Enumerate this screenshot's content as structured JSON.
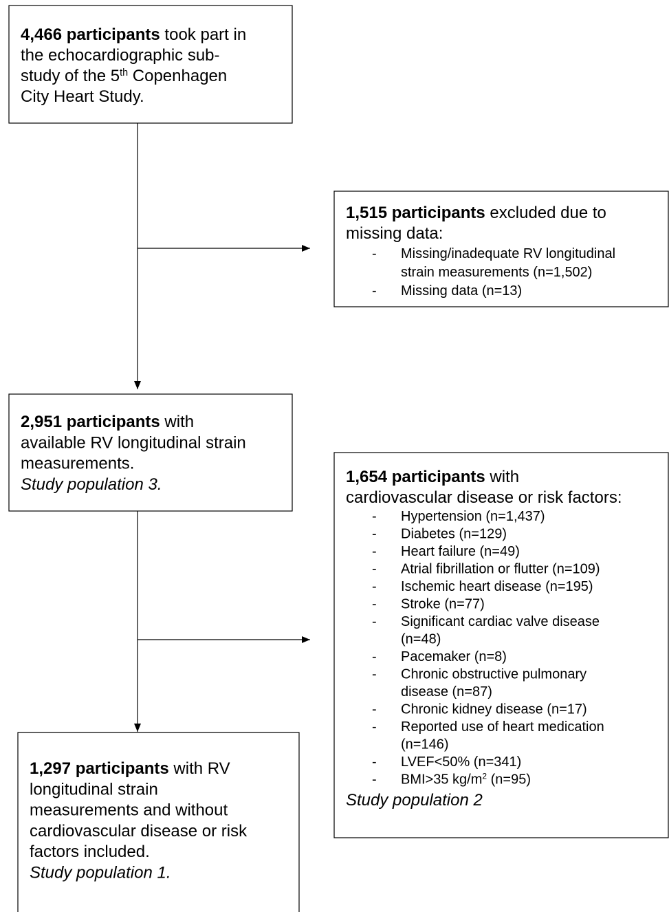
{
  "bullet": "-",
  "nodes": [
    {
      "head": [
        [
          {
            "text": "4,466 participants",
            "style": "bold"
          },
          " took part in"
        ],
        [
          "the echocardiographic sub-"
        ],
        [
          "study of the 5",
          {
            "text": "th",
            "style": "sup"
          },
          " Copenhagen"
        ],
        [
          "City Heart Study."
        ]
      ]
    },
    {
      "head": [
        [
          {
            "text": "1,515 participants",
            "style": "bold"
          },
          " excluded due to"
        ],
        [
          "missing data:"
        ]
      ],
      "items": [
        [
          [
            "Missing/inadequate RV longitudinal"
          ],
          [
            "strain measurements (n=1,502)"
          ]
        ],
        [
          [
            "Missing data (n=13)"
          ]
        ]
      ]
    },
    {
      "head": [
        [
          {
            "text": "2,951 participants",
            "style": "bold"
          },
          " with"
        ],
        [
          "available RV longitudinal strain"
        ],
        [
          "measurements."
        ],
        [
          {
            "text": "Study population 3.",
            "style": "italic"
          }
        ]
      ]
    },
    {
      "head": [
        [
          {
            "text": "1,654 participants",
            "style": "bold"
          },
          " with"
        ],
        [
          "cardiovascular disease or risk factors:"
        ]
      ],
      "items": [
        [
          [
            "Hypertension (n=1,437)"
          ]
        ],
        [
          [
            "Diabetes (n=129)"
          ]
        ],
        [
          [
            "Heart failure (n=49)"
          ]
        ],
        [
          [
            "Atrial fibrillation or flutter (n=109)"
          ]
        ],
        [
          [
            "Ischemic heart disease (n=195)"
          ]
        ],
        [
          [
            "Stroke (n=77)"
          ]
        ],
        [
          [
            "Significant cardiac valve disease"
          ],
          [
            "(n=48)"
          ]
        ],
        [
          [
            "Pacemaker (n=8)"
          ]
        ],
        [
          [
            "Chronic obstructive pulmonary"
          ],
          [
            "disease (n=87)"
          ]
        ],
        [
          [
            "Chronic kidney disease (n=17)"
          ]
        ],
        [
          [
            "Reported use of heart medication"
          ],
          [
            "(n=146)"
          ]
        ],
        [
          [
            "LVEF<50% (n=341)"
          ]
        ],
        [
          [
            "BMI>35 kg/m",
            {
              "text": "2",
              "style": "sup"
            },
            " (n=95)"
          ]
        ]
      ],
      "foot": [
        [
          {
            "text": "Study population 2",
            "style": "italic"
          }
        ]
      ]
    },
    {
      "head": [
        [
          {
            "text": "1,297 participants",
            "style": "bold"
          },
          " with RV"
        ],
        [
          "longitudinal strain"
        ],
        [
          "measurements and without"
        ],
        [
          "cardiovascular disease or risk"
        ],
        [
          "factors included."
        ],
        [
          {
            "text": "Study population 1.",
            "style": "italic"
          }
        ]
      ]
    }
  ]
}
